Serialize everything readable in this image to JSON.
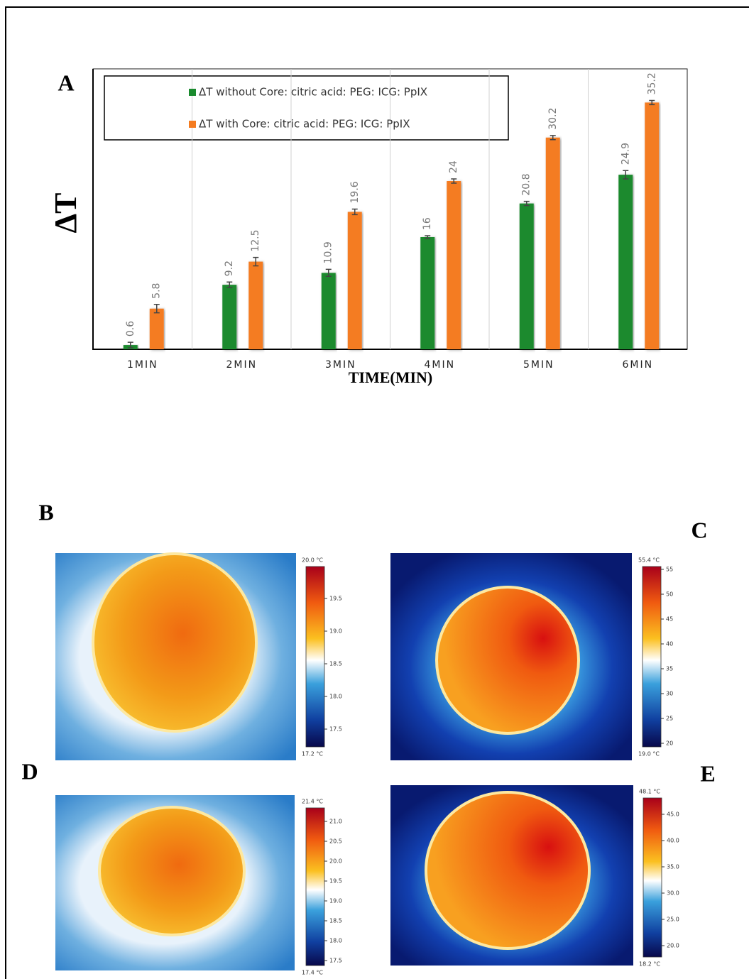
{
  "chart_data": {
    "type": "bar",
    "label": "A",
    "y_label": "ΔT",
    "x_label": "TIME(MIN)",
    "categories": [
      "1MIN",
      "2MIN",
      "3MIN",
      "4MIN",
      "5MIN",
      "6MIN"
    ],
    "series": [
      {
        "name": "ΔT without Core: citric acid: PEG: ICG: PpIX",
        "color": "#1a8a2e",
        "values": [
          0.6,
          9.2,
          10.9,
          16,
          20.8,
          24.9
        ],
        "errors": [
          0.4,
          0.4,
          0.5,
          0.2,
          0.3,
          0.6
        ]
      },
      {
        "name": "ΔT with Core: citric acid: PEG: ICG: PpIX",
        "color": "#f47b20",
        "values": [
          5.8,
          12.5,
          19.6,
          24,
          30.2,
          35.2
        ],
        "errors": [
          0.6,
          0.6,
          0.4,
          0.3,
          0.3,
          0.3
        ]
      }
    ],
    "ylim": [
      0,
      40
    ],
    "grid": true
  },
  "panels": [
    {
      "label": "B",
      "max_label": "20.0 °C",
      "min_label": "17.2 °C",
      "ticks": [
        "19.5",
        "19.0",
        "18.5",
        "18.0",
        "17.5"
      ]
    },
    {
      "label": "C",
      "max_label": "55.4 °C",
      "min_label": "19.0 °C",
      "ticks": [
        "55",
        "50",
        "45",
        "40",
        "35",
        "30",
        "25",
        "20"
      ]
    },
    {
      "label": "D",
      "max_label": "21.4 °C",
      "min_label": "17.4 °C",
      "ticks": [
        "21.0",
        "20.5",
        "20.0",
        "19.5",
        "19.0",
        "18.5",
        "18.0",
        "17.5"
      ]
    },
    {
      "label": "E",
      "max_label": "48.1 °C",
      "min_label": "18.2 °C",
      "ticks": [
        "45.0",
        "40.0",
        "35.0",
        "30.0",
        "25.0",
        "20.0"
      ]
    }
  ]
}
